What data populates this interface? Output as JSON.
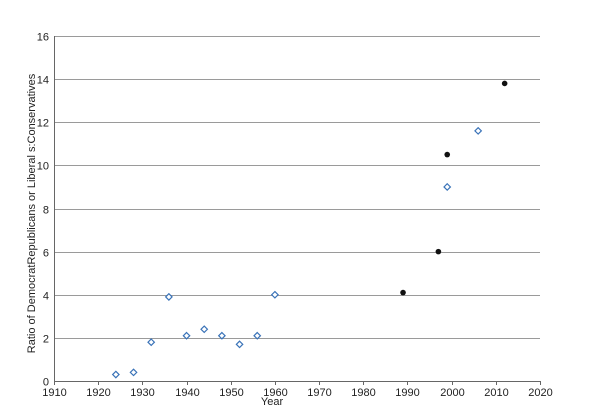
{
  "chart_data": {
    "type": "scatter",
    "xlabel": "Year",
    "ylabel": "Ratio of DemocratRepublicans   or Liberal  s:Conservatives",
    "xlim": [
      1910,
      2020
    ],
    "ylim": [
      0,
      16
    ],
    "xticks": [
      "1910",
      "1920",
      "1930",
      "1940",
      "1950",
      "1960",
      "1970",
      "1980",
      "1990",
      "2000",
      "2010",
      "2020"
    ],
    "yticks": [
      "0",
      "2",
      "4",
      "6",
      "8",
      "10",
      "12",
      "14",
      "16"
    ],
    "grid": "horizontal",
    "series": [
      {
        "marker": "hollow-diamond",
        "color": "#3a73b8",
        "points": [
          {
            "x": 1924,
            "y": 0.3
          },
          {
            "x": 1928,
            "y": 0.4
          },
          {
            "x": 1932,
            "y": 1.8
          },
          {
            "x": 1936,
            "y": 3.9
          },
          {
            "x": 1940,
            "y": 2.1
          },
          {
            "x": 1944,
            "y": 2.4
          },
          {
            "x": 1948,
            "y": 2.1
          },
          {
            "x": 1952,
            "y": 1.7
          },
          {
            "x": 1956,
            "y": 2.1
          },
          {
            "x": 1960,
            "y": 4.0
          },
          {
            "x": 1999,
            "y": 9.0
          },
          {
            "x": 2006,
            "y": 11.6
          }
        ]
      },
      {
        "marker": "filled-circle",
        "color": "#111111",
        "points": [
          {
            "x": 1989,
            "y": 4.1
          },
          {
            "x": 1997,
            "y": 6.0
          },
          {
            "x": 1999,
            "y": 10.5
          },
          {
            "x": 2012,
            "y": 13.8
          }
        ]
      }
    ]
  }
}
